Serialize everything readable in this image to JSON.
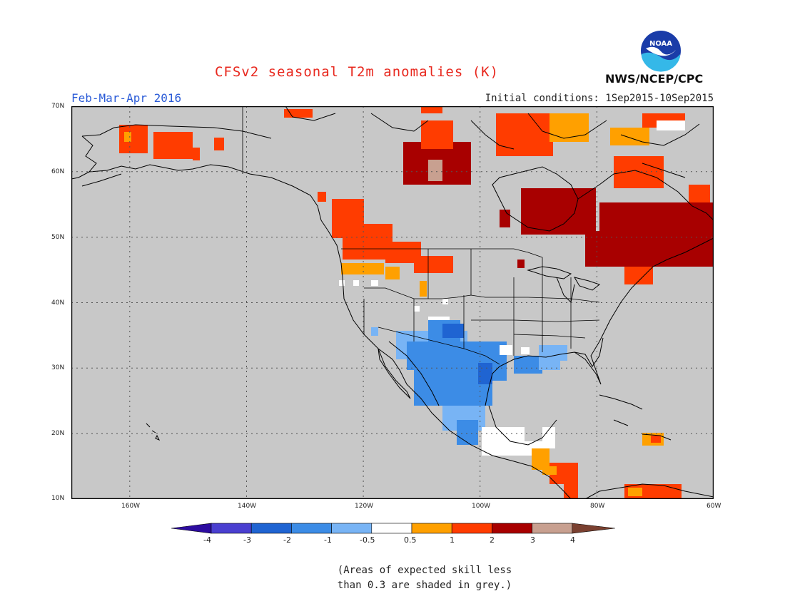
{
  "header": {
    "title": "CFSv2 seasonal T2m anomalies (K)",
    "season": "Feb-Mar-Apr 2016",
    "initial_conditions": "Initial conditions: 1Sep2015-10Sep2015",
    "agency": "NWS/NCEP/CPC",
    "logo_text": "NOAA"
  },
  "map": {
    "region": "North America",
    "lon_range": [
      -170,
      -60
    ],
    "lat_range": [
      10,
      70
    ],
    "lat_labels": [
      "70N",
      "60N",
      "50N",
      "40N",
      "30N",
      "20N",
      "10N"
    ],
    "lon_labels": [
      "160W",
      "140W",
      "120W",
      "100W",
      "80W",
      "60W"
    ],
    "background_color": "#c8c8c8"
  },
  "colorbar": {
    "labels": [
      "-4",
      "-3",
      "-2",
      "-1",
      "-0.5",
      "0.5",
      "1",
      "2",
      "3",
      "4"
    ],
    "colors": [
      "#2d0ca0",
      "#4a3fd0",
      "#1f64d2",
      "#3c8ce6",
      "#78b4f5",
      "#ffffff",
      "#ffa000",
      "#ff3c00",
      "#a80000",
      "#c8a090",
      "#7a4030"
    ]
  },
  "note": {
    "line1": "(Areas of expected skill less",
    "line2": "than 0.3 are shaded in grey.)"
  }
}
